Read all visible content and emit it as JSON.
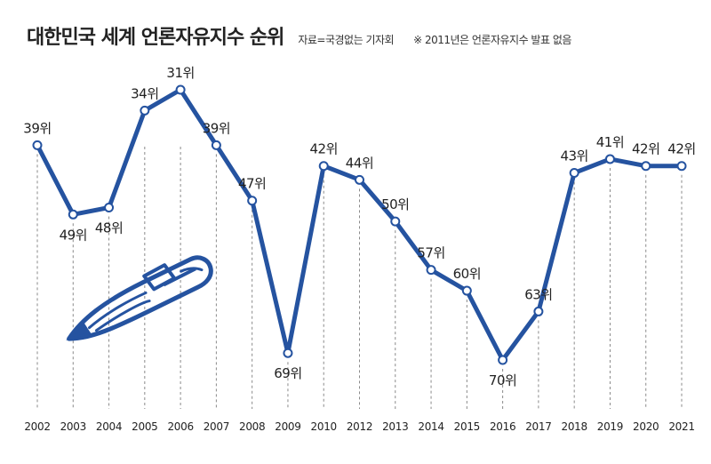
{
  "header": {
    "title": "대한민국 세계 언론자유지수 순위",
    "source": "자료=국경없는 기자회",
    "note": "※ 2011년은 언론자유지수 발표 없음"
  },
  "colors": {
    "line": "#2553a0",
    "grid": "#8a8a8a",
    "point_fill": "#ffffff",
    "pen": "#2553a0"
  },
  "chart_data": {
    "type": "line",
    "title": "대한민국 세계 언론자유지수 순위",
    "xlabel": "",
    "ylabel": "",
    "y_inverted": true,
    "ylim": [
      31,
      70
    ],
    "grid": "vertical dashed",
    "x": [
      "2002",
      "2003",
      "2004",
      "2005",
      "2006",
      "2007",
      "2008",
      "2009",
      "2010",
      "2012",
      "2013",
      "2014",
      "2015",
      "2016",
      "2017",
      "2018",
      "2019",
      "2020",
      "2021"
    ],
    "series": [
      {
        "values": [
          39,
          49,
          48,
          34,
          31,
          39,
          47,
          69,
          42,
          44,
          50,
          57,
          60,
          70,
          63,
          43,
          41,
          42,
          42
        ]
      }
    ],
    "data_labels": [
      "39위",
      "49위",
      "48위",
      "34위",
      "31위",
      "39위",
      "47위",
      "69위",
      "42위",
      "44위",
      "50위",
      "57위",
      "60위",
      "70위",
      "63위",
      "43위",
      "41위",
      "42위",
      "42위"
    ]
  }
}
